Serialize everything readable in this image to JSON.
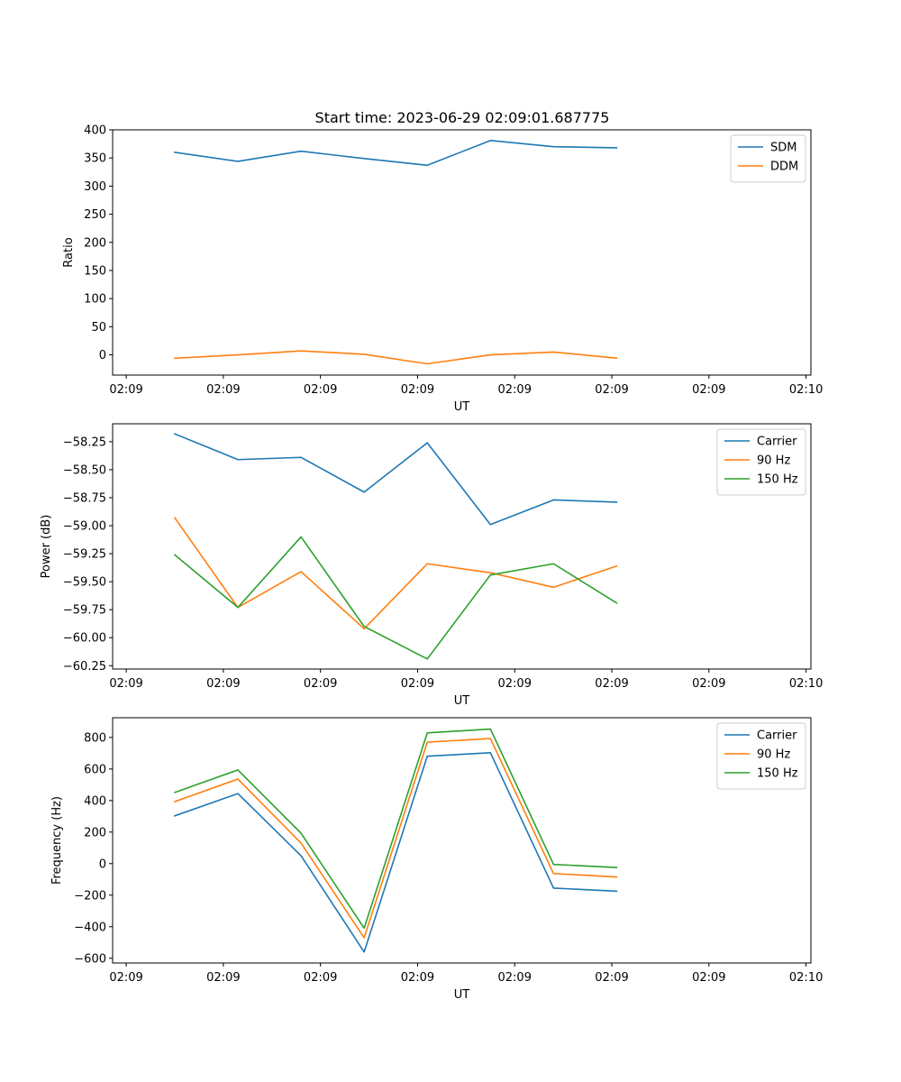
{
  "figure": {
    "title": "Start time: 2023-06-29 02:09:01.687775"
  },
  "chart_data": [
    {
      "type": "line",
      "xlabel": "UT",
      "ylabel": "Ratio",
      "x_tick_labels": [
        "02:09",
        "02:09",
        "02:09",
        "02:09",
        "02:09",
        "02:09",
        "02:09"
      ],
      "x_tick_last_label": "02:10",
      "x_tick_values": [
        0,
        1,
        2,
        3,
        4,
        5,
        6,
        7
      ],
      "xlim": [
        -0.14,
        7.05
      ],
      "x": [
        0.5,
        1.15,
        1.8,
        2.45,
        3.1,
        3.75,
        4.4,
        5.05
      ],
      "ylim": [
        -36,
        400
      ],
      "y_ticks": [
        0,
        50,
        100,
        150,
        200,
        250,
        300,
        350,
        400
      ],
      "legend_position": "top-right",
      "series": [
        {
          "name": "SDM",
          "color": "#1f77b4",
          "values": [
            360,
            344,
            362,
            349,
            337,
            381,
            370,
            368
          ]
        },
        {
          "name": "DDM",
          "color": "#ff7f0e",
          "values": [
            -6,
            0,
            7,
            1,
            -16,
            0,
            5,
            -6
          ]
        }
      ]
    },
    {
      "type": "line",
      "xlabel": "UT",
      "ylabel": "Power (dB)",
      "x_tick_labels": [
        "02:09",
        "02:09",
        "02:09",
        "02:09",
        "02:09",
        "02:09",
        "02:09"
      ],
      "x_tick_last_label": "02:10",
      "x_tick_values": [
        0,
        1,
        2,
        3,
        4,
        5,
        6,
        7
      ],
      "xlim": [
        -0.14,
        7.05
      ],
      "x": [
        0.5,
        1.15,
        1.8,
        2.45,
        3.1,
        3.75,
        4.4,
        5.05
      ],
      "ylim": [
        -60.28,
        -58.09
      ],
      "y_ticks": [
        -60.25,
        -60.0,
        -59.75,
        -59.5,
        -59.25,
        -59.0,
        -58.75,
        -58.5,
        -58.25
      ],
      "y_tick_labels": [
        "−60.25",
        "−60.00",
        "−59.75",
        "−59.50",
        "−59.25",
        "−59.00",
        "−58.75",
        "−58.50",
        "−58.25"
      ],
      "legend_position": "top-right",
      "series": [
        {
          "name": "Carrier",
          "color": "#1f77b4",
          "values": [
            -58.18,
            -58.41,
            -58.39,
            -58.7,
            -58.26,
            -58.99,
            -58.77,
            -58.79
          ]
        },
        {
          "name": "90 Hz",
          "color": "#ff7f0e",
          "values": [
            -58.93,
            -59.73,
            -59.41,
            -59.92,
            -59.34,
            -59.42,
            -59.55,
            -59.36
          ]
        },
        {
          "name": "150 Hz",
          "color": "#2ca02c",
          "values": [
            -59.26,
            -59.73,
            -59.1,
            -59.9,
            -60.19,
            -59.44,
            -59.34,
            -59.69
          ]
        }
      ]
    },
    {
      "type": "line",
      "xlabel": "UT",
      "ylabel": "Frequency (Hz)",
      "x_tick_labels": [
        "02:09",
        "02:09",
        "02:09",
        "02:09",
        "02:09",
        "02:09",
        "02:09"
      ],
      "x_tick_last_label": "02:10",
      "x_tick_values": [
        0,
        1,
        2,
        3,
        4,
        5,
        6,
        7
      ],
      "xlim": [
        -0.14,
        7.05
      ],
      "x": [
        0.5,
        1.15,
        1.8,
        2.45,
        3.1,
        3.75,
        4.4,
        5.05
      ],
      "ylim": [
        -630,
        925
      ],
      "y_ticks": [
        -600,
        -400,
        -200,
        0,
        200,
        400,
        600,
        800
      ],
      "y_tick_labels": [
        "−600",
        "−400",
        "−200",
        "0",
        "200",
        "400",
        "600",
        "800"
      ],
      "legend_position": "top-right",
      "series": [
        {
          "name": "Carrier",
          "color": "#1f77b4",
          "values": [
            303,
            444,
            50,
            -560,
            681,
            703,
            -155,
            -175
          ]
        },
        {
          "name": "90 Hz",
          "color": "#ff7f0e",
          "values": [
            393,
            536,
            130,
            -470,
            770,
            793,
            -63,
            -85
          ]
        },
        {
          "name": "150 Hz",
          "color": "#2ca02c",
          "values": [
            451,
            594,
            193,
            -409,
            829,
            853,
            -5,
            -25
          ]
        }
      ]
    }
  ]
}
